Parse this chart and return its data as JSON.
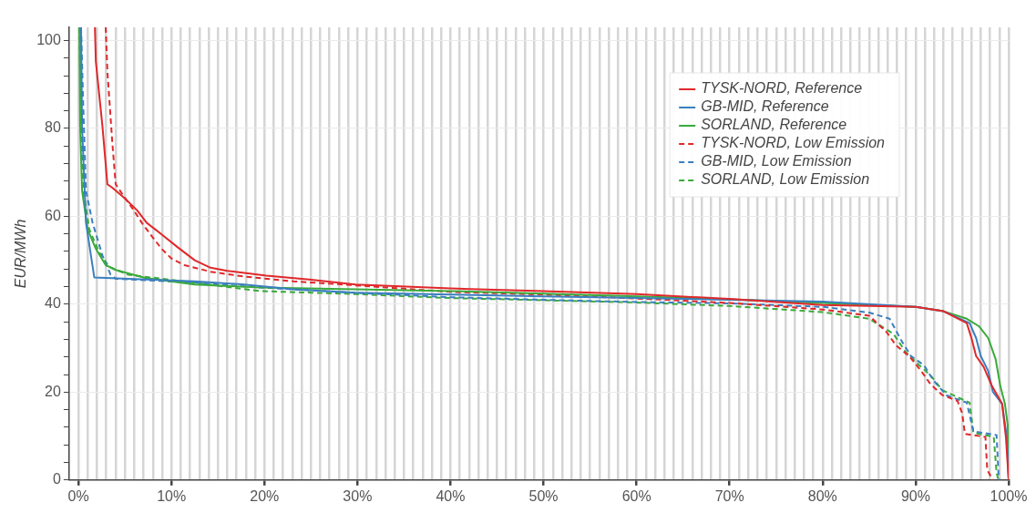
{
  "chart_data": {
    "type": "line",
    "ylabel": "EUR/MWh",
    "xlim": [
      -1,
      100
    ],
    "ylim": [
      0,
      103
    ],
    "xticks": [
      {
        "value": 0,
        "label": "0%"
      },
      {
        "value": 1,
        "label": null
      },
      {
        "value": 2,
        "label": null
      },
      {
        "value": 3,
        "label": null
      },
      {
        "value": 4,
        "label": null
      },
      {
        "value": 5,
        "label": null
      },
      {
        "value": 6,
        "label": null
      },
      {
        "value": 7,
        "label": null
      },
      {
        "value": 8,
        "label": null
      },
      {
        "value": 9,
        "label": null
      },
      {
        "value": 10,
        "label": "10%"
      },
      {
        "value": 11,
        "label": null
      },
      {
        "value": 12,
        "label": null
      },
      {
        "value": 13,
        "label": null
      },
      {
        "value": 14,
        "label": null
      },
      {
        "value": 15,
        "label": null
      },
      {
        "value": 16,
        "label": null
      },
      {
        "value": 17,
        "label": null
      },
      {
        "value": 18,
        "label": null
      },
      {
        "value": 19,
        "label": null
      },
      {
        "value": 20,
        "label": "20%"
      },
      {
        "value": 21,
        "label": null
      },
      {
        "value": 22,
        "label": null
      },
      {
        "value": 23,
        "label": null
      },
      {
        "value": 24,
        "label": null
      },
      {
        "value": 25,
        "label": null
      },
      {
        "value": 26,
        "label": null
      },
      {
        "value": 27,
        "label": null
      },
      {
        "value": 28,
        "label": null
      },
      {
        "value": 29,
        "label": null
      },
      {
        "value": 30,
        "label": "30%"
      },
      {
        "value": 31,
        "label": null
      },
      {
        "value": 32,
        "label": null
      },
      {
        "value": 33,
        "label": null
      },
      {
        "value": 34,
        "label": null
      },
      {
        "value": 35,
        "label": null
      },
      {
        "value": 36,
        "label": null
      },
      {
        "value": 37,
        "label": null
      },
      {
        "value": 38,
        "label": null
      },
      {
        "value": 39,
        "label": null
      },
      {
        "value": 40,
        "label": "40%"
      },
      {
        "value": 41,
        "label": null
      },
      {
        "value": 42,
        "label": null
      },
      {
        "value": 43,
        "label": null
      },
      {
        "value": 44,
        "label": null
      },
      {
        "value": 45,
        "label": null
      },
      {
        "value": 46,
        "label": null
      },
      {
        "value": 47,
        "label": null
      },
      {
        "value": 48,
        "label": null
      },
      {
        "value": 49,
        "label": null
      },
      {
        "value": 50,
        "label": "50%"
      },
      {
        "value": 51,
        "label": null
      },
      {
        "value": 52,
        "label": null
      },
      {
        "value": 53,
        "label": null
      },
      {
        "value": 54,
        "label": null
      },
      {
        "value": 55,
        "label": null
      },
      {
        "value": 56,
        "label": null
      },
      {
        "value": 57,
        "label": null
      },
      {
        "value": 58,
        "label": null
      },
      {
        "value": 59,
        "label": null
      },
      {
        "value": 60,
        "label": "60%"
      },
      {
        "value": 61,
        "label": null
      },
      {
        "value": 62,
        "label": null
      },
      {
        "value": 63,
        "label": null
      },
      {
        "value": 64,
        "label": null
      },
      {
        "value": 65,
        "label": null
      },
      {
        "value": 66,
        "label": null
      },
      {
        "value": 67,
        "label": null
      },
      {
        "value": 68,
        "label": null
      },
      {
        "value": 69,
        "label": null
      },
      {
        "value": 70,
        "label": "70%"
      },
      {
        "value": 71,
        "label": null
      },
      {
        "value": 72,
        "label": null
      },
      {
        "value": 73,
        "label": null
      },
      {
        "value": 74,
        "label": null
      },
      {
        "value": 75,
        "label": null
      },
      {
        "value": 76,
        "label": null
      },
      {
        "value": 77,
        "label": null
      },
      {
        "value": 78,
        "label": null
      },
      {
        "value": 79,
        "label": null
      },
      {
        "value": 80,
        "label": "80%"
      },
      {
        "value": 81,
        "label": null
      },
      {
        "value": 82,
        "label": null
      },
      {
        "value": 83,
        "label": null
      },
      {
        "value": 84,
        "label": null
      },
      {
        "value": 85,
        "label": null
      },
      {
        "value": 86,
        "label": null
      },
      {
        "value": 87,
        "label": null
      },
      {
        "value": 88,
        "label": null
      },
      {
        "value": 89,
        "label": null
      },
      {
        "value": 90,
        "label": "90%"
      },
      {
        "value": 91,
        "label": null
      },
      {
        "value": 92,
        "label": null
      },
      {
        "value": 93,
        "label": null
      },
      {
        "value": 94,
        "label": null
      },
      {
        "value": 95,
        "label": null
      },
      {
        "value": 96,
        "label": null
      },
      {
        "value": 97,
        "label": null
      },
      {
        "value": 98,
        "label": null
      },
      {
        "value": 99,
        "label": null
      },
      {
        "value": 100,
        "label": "100%"
      }
    ],
    "yticks": [
      0,
      {
        "value": 4,
        "label": null
      },
      {
        "value": 8,
        "label": null
      },
      {
        "value": 12,
        "label": null
      },
      {
        "value": 16,
        "label": null
      },
      20,
      {
        "value": 24,
        "label": null
      },
      {
        "value": 28,
        "label": null
      },
      {
        "value": 32,
        "label": null
      },
      {
        "value": 36,
        "label": null
      },
      40,
      {
        "value": 44,
        "label": null
      },
      {
        "value": 48,
        "label": null
      },
      {
        "value": 52,
        "label": null
      },
      {
        "value": 56,
        "label": null
      },
      60,
      {
        "value": 64,
        "label": null
      },
      {
        "value": 68,
        "label": null
      },
      {
        "value": 72,
        "label": null
      },
      {
        "value": 76,
        "label": null
      },
      80,
      {
        "value": 84,
        "label": null
      },
      {
        "value": 88,
        "label": null
      },
      {
        "value": 92,
        "label": null
      },
      {
        "value": 96,
        "label": null
      },
      100
    ],
    "grid": true,
    "legend": "top right",
    "marker": "none",
    "series": [
      {
        "name": "TYSK-NORD, Reference",
        "color": "#e0282a",
        "line_style": "solid",
        "x": [
          1.77,
          1.87,
          2.58,
          3.11,
          3.64,
          4.88,
          6.29,
          7.35,
          8.94,
          10.7,
          12.5,
          14.2,
          16.0,
          20.2,
          24.8,
          29.8,
          40,
          50,
          60,
          70,
          80,
          90,
          93,
          95.5,
          96.0,
          96.5,
          97.3,
          98.2,
          99.3,
          99.7,
          100
        ],
        "values": [
          103,
          95.2,
          80.5,
          67.3,
          66.5,
          64.3,
          61.4,
          58.5,
          55.9,
          52.9,
          50.0,
          48.3,
          47.6,
          46.5,
          45.6,
          44.5,
          43.6,
          43.0,
          42.3,
          41.2,
          39.8,
          39.4,
          38.4,
          35.7,
          32.3,
          28.2,
          25.8,
          21.4,
          17.3,
          9.8,
          0
        ]
      },
      {
        "name": "GB-MID, Reference",
        "color": "#3a7fc0",
        "line_style": "solid",
        "x": [
          0.28,
          0.39,
          0.81,
          1.7,
          5.4,
          12.5,
          17.8,
          23.1,
          29.8,
          40,
          50,
          60,
          70,
          80,
          90,
          93,
          95.8,
          96.5,
          97.0,
          97.5,
          97.8,
          98.3,
          99.3,
          99.8,
          100
        ],
        "values": [
          103,
          80.5,
          58.5,
          46.1,
          45.8,
          45.2,
          44.5,
          43.4,
          42.6,
          42.2,
          41.8,
          41.4,
          41.0,
          40.6,
          39.4,
          38.4,
          35.7,
          32.3,
          28.2,
          26.1,
          24.8,
          20.1,
          17.3,
          9.8,
          0
        ]
      },
      {
        "name": "SORLAND, Reference",
        "color": "#3aaa3a",
        "line_style": "solid",
        "x": [
          0.1,
          0.18,
          0.39,
          0.99,
          1.87,
          2.93,
          4.0,
          7.17,
          12.5,
          19.5,
          29.8,
          40,
          50,
          60,
          70,
          80,
          90,
          93,
          95.5,
          96.8,
          97.8,
          98.6,
          99.1,
          99.6,
          99.9,
          100
        ],
        "values": [
          103,
          80.5,
          65.8,
          57.0,
          52.6,
          48.9,
          47.8,
          46.0,
          44.5,
          43.8,
          43.4,
          43.0,
          42.4,
          41.8,
          41.1,
          40.3,
          39.4,
          38.4,
          36.7,
          35.0,
          32.3,
          27.5,
          21.4,
          17.3,
          12.5,
          0
        ]
      },
      {
        "name": "TYSK-NORD, Low Emission",
        "color": "#e0282a",
        "line_style": "dashed",
        "x": [
          2.93,
          3.11,
          3.64,
          4.0,
          4.7,
          5.94,
          6.82,
          7.88,
          8.94,
          10.0,
          11.4,
          14.2,
          17.8,
          23.1,
          29.8,
          40,
          50,
          60,
          70,
          80,
          85.0,
          86.9,
          87.9,
          89.3,
          90.6,
          91.6,
          92.9,
          94.5,
          95.0,
          95.3,
          97.5,
          97.7,
          98.3
        ],
        "values": [
          103,
          93.0,
          76.8,
          67.3,
          65.1,
          61.4,
          58.5,
          55.5,
          52.6,
          50.4,
          48.9,
          47.4,
          46.3,
          45.2,
          44.3,
          42.8,
          42.2,
          41.3,
          40.3,
          38.8,
          37.4,
          33.6,
          30.6,
          28.2,
          24.8,
          21.8,
          19.3,
          18.0,
          15.2,
          10.5,
          9.8,
          2.3,
          0
        ]
      },
      {
        "name": "GB-MID, Low Emission",
        "color": "#3a7fc0",
        "line_style": "dashed",
        "x": [
          0.28,
          0.53,
          0.81,
          1.52,
          2.58,
          3.46,
          4.0,
          12.5,
          19.5,
          29.8,
          40,
          50,
          60,
          70,
          80,
          85.0,
          87.2,
          88.5,
          89.5,
          90.9,
          91.9,
          93.3,
          95.5,
          96.2,
          98.7,
          98.9,
          99.0
        ],
        "values": [
          103,
          84.2,
          65.8,
          58.5,
          51.1,
          46.7,
          45.8,
          44.9,
          43.8,
          42.6,
          41.6,
          41.0,
          40.5,
          40.2,
          39.4,
          38.1,
          36.7,
          31.6,
          28.2,
          26.1,
          22.7,
          19.3,
          17.6,
          11.1,
          10.2,
          1.6,
          0
        ]
      },
      {
        "name": "SORLAND, Low Emission",
        "color": "#3aaa3a",
        "line_style": "dashed",
        "x": [
          0.1,
          0.28,
          0.53,
          1.17,
          2.23,
          3.29,
          5.4,
          12.5,
          19.5,
          29.8,
          40,
          50,
          60,
          70,
          80,
          85.0,
          87.6,
          88.9,
          90.2,
          91.6,
          92.9,
          95.8,
          96.2,
          98.4,
          98.7,
          98.9
        ],
        "values": [
          103,
          80.5,
          65.8,
          57.0,
          51.8,
          48.5,
          46.7,
          44.9,
          43.0,
          42.3,
          41.4,
          40.9,
          40.4,
          39.6,
          38.2,
          36.7,
          33.3,
          29.2,
          26.5,
          23.8,
          20.4,
          17.6,
          10.8,
          9.8,
          1.6,
          0
        ]
      }
    ]
  }
}
